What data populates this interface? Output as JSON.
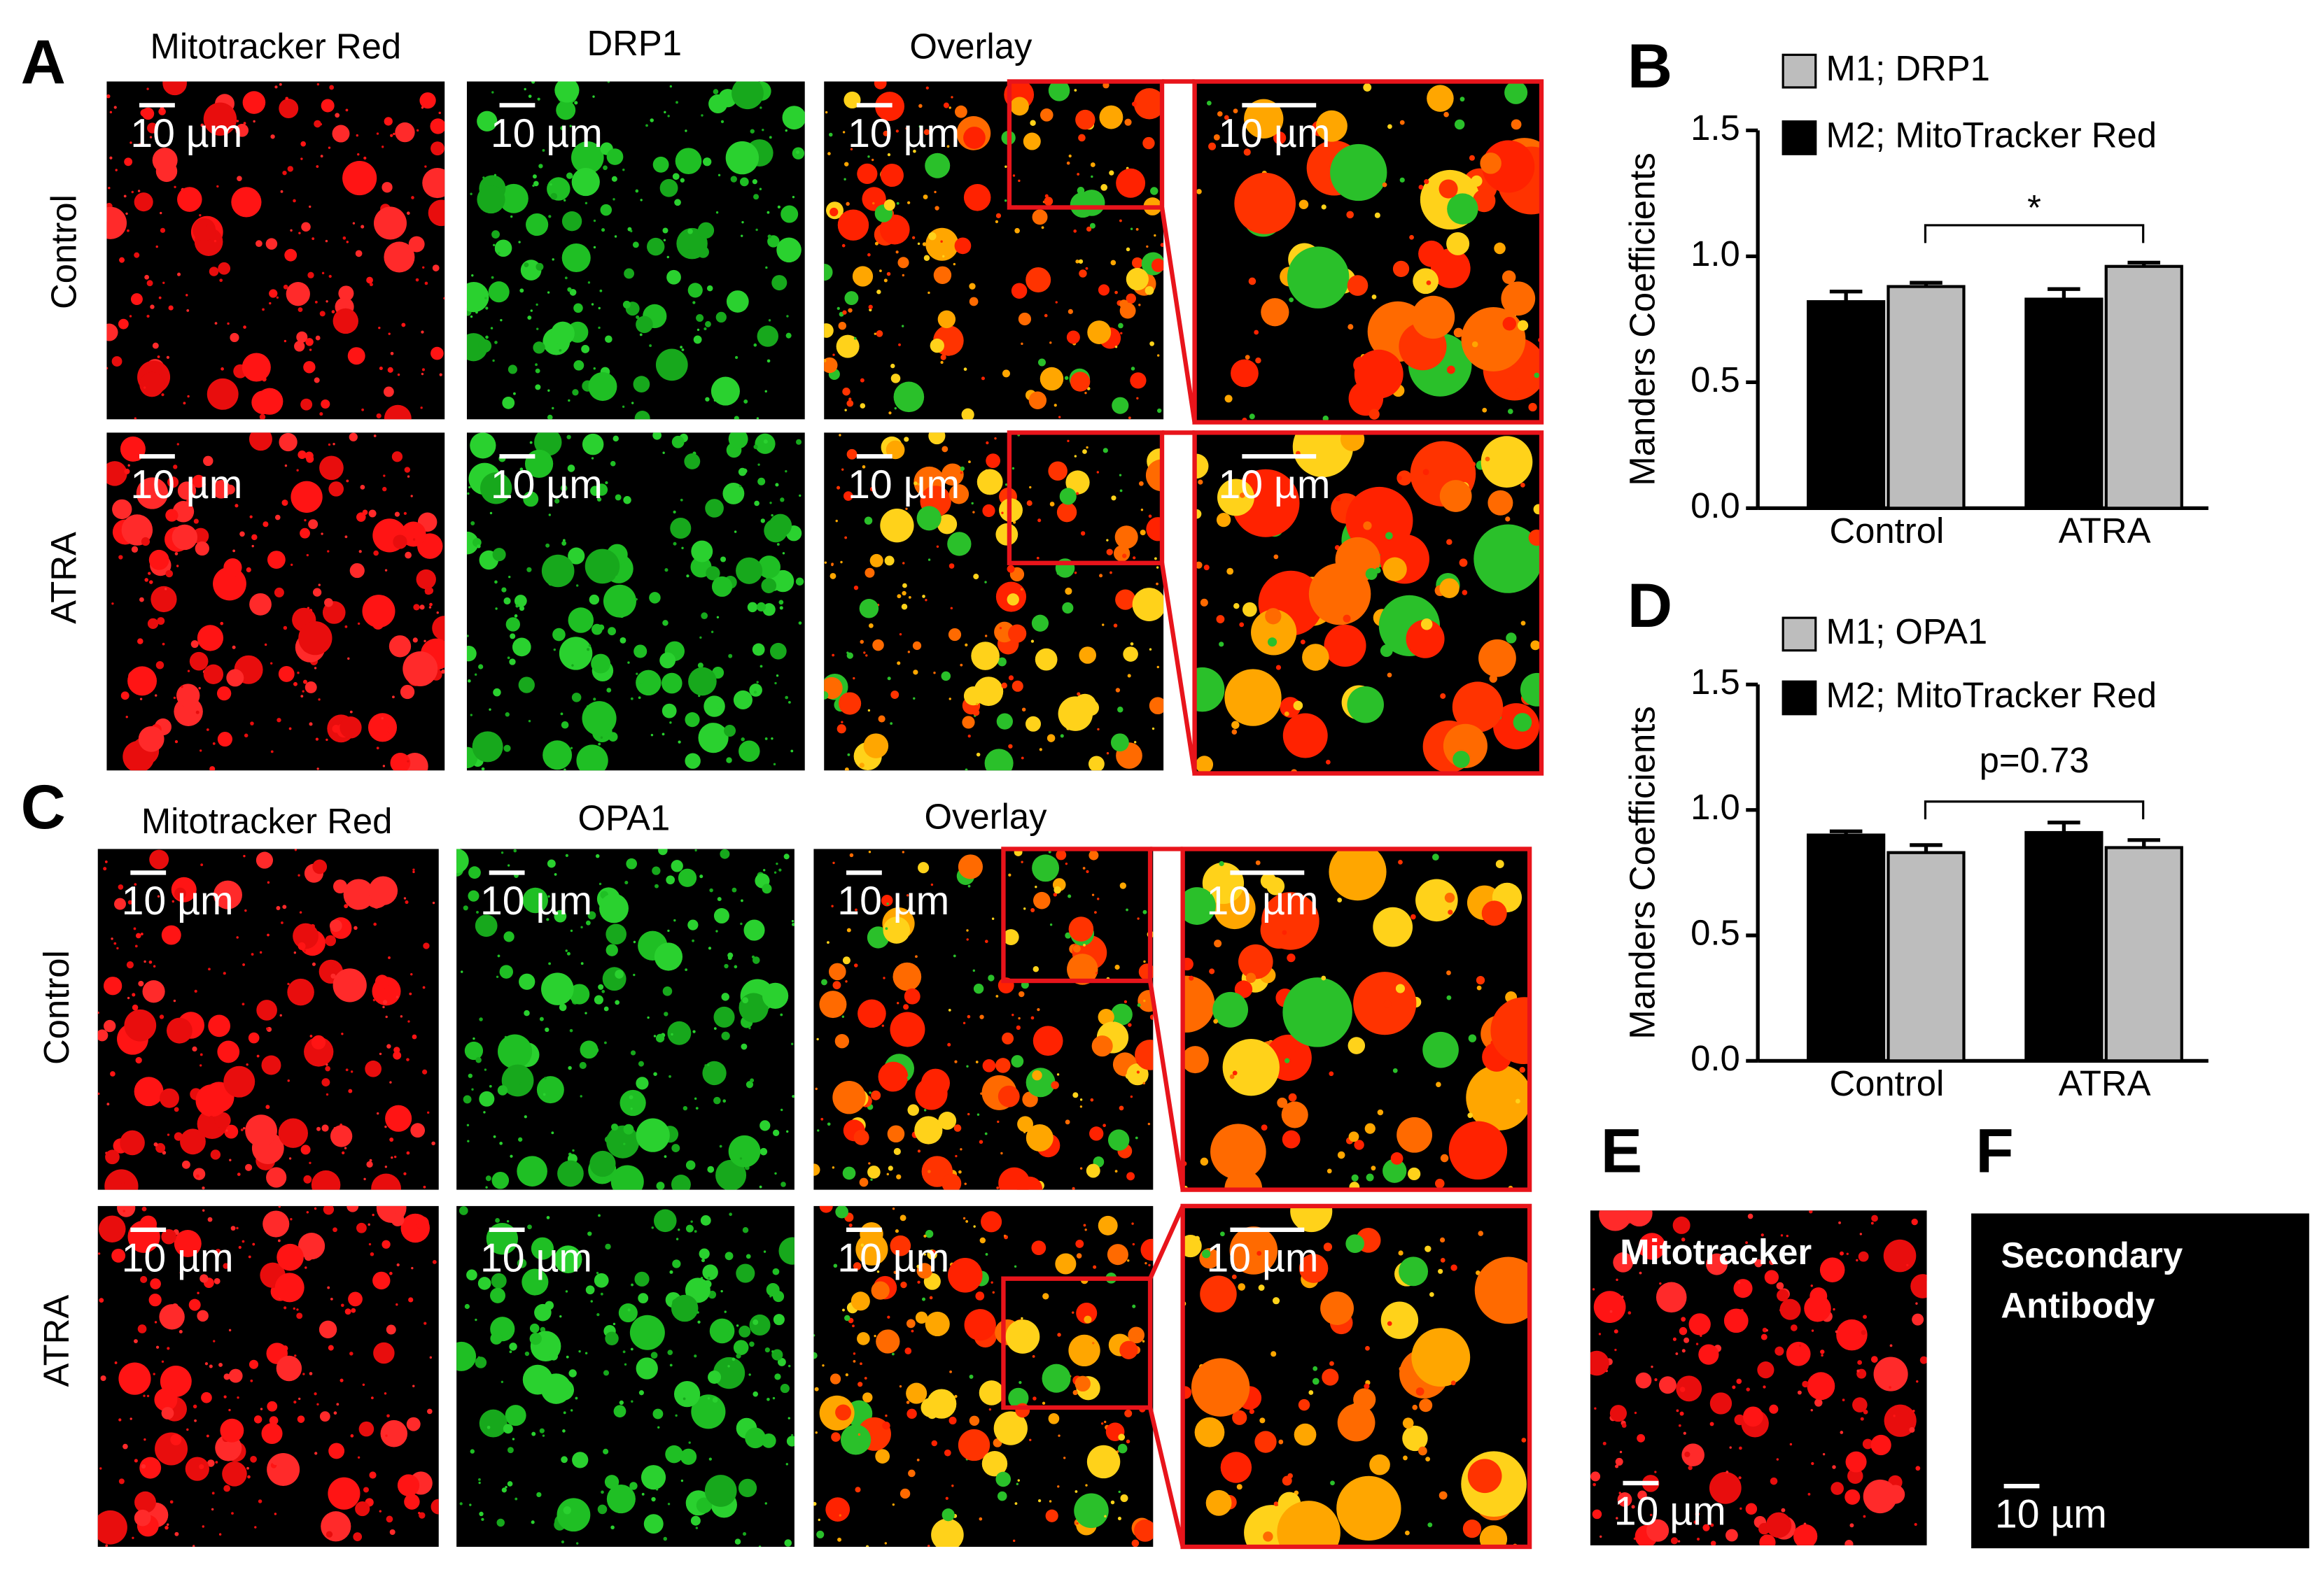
{
  "panels": {
    "A": {
      "letter": "A",
      "columns": [
        "Mitotracker Red",
        "DRP1",
        "Overlay"
      ],
      "rows": [
        "Control",
        "ATRA"
      ],
      "scale_bar": "10 µm"
    },
    "C": {
      "letter": "C",
      "columns": [
        "Mitotracker Red",
        "OPA1",
        "Overlay"
      ],
      "rows": [
        "Control",
        "ATRA"
      ],
      "scale_bar": "10 µm"
    },
    "E": {
      "letter": "E",
      "label": [
        "Mitotracker"
      ],
      "scale_bar": "10 µm"
    },
    "F": {
      "letter": "F",
      "label": [
        "Secondary",
        "Antibody"
      ],
      "scale_bar": "10 µm"
    }
  },
  "chart_data": [
    {
      "type": "bar",
      "letter": "B",
      "ylabel": "Manders Coefficients",
      "categories": [
        "Control",
        "ATRA"
      ],
      "series": [
        {
          "name": "M1; DRP1",
          "color": "#bdbdbd",
          "values": [
            0.88,
            0.96
          ],
          "errors": [
            0.015,
            0.015
          ]
        },
        {
          "name": "M2; MitoTracker Red",
          "color": "#000000",
          "values": [
            0.82,
            0.83
          ],
          "errors": [
            0.04,
            0.04
          ]
        }
      ],
      "ylim": [
        0,
        1.5
      ],
      "yticks": [
        {
          "value": 0,
          "label": "0.0"
        },
        0.5,
        {
          "value": 1,
          "label": "1.0"
        },
        1.5
      ],
      "annotation": "*"
    },
    {
      "type": "bar",
      "letter": "D",
      "ylabel": "Manders Coefficients",
      "categories": [
        "Control",
        "ATRA"
      ],
      "series": [
        {
          "name": "M1; OPA1",
          "color": "#bdbdbd",
          "values": [
            0.83,
            0.85
          ],
          "errors": [
            0.03,
            0.03
          ]
        },
        {
          "name": "M2; MitoTracker Red",
          "color": "#000000",
          "values": [
            0.9,
            0.91
          ],
          "errors": [
            0.015,
            0.04
          ]
        }
      ],
      "ylim": [
        0,
        1.5
      ],
      "yticks": [
        {
          "value": 0,
          "label": "0.0"
        },
        0.5,
        {
          "value": 1,
          "label": "1.0"
        },
        1.5
      ],
      "annotation": "p=0.73"
    }
  ]
}
